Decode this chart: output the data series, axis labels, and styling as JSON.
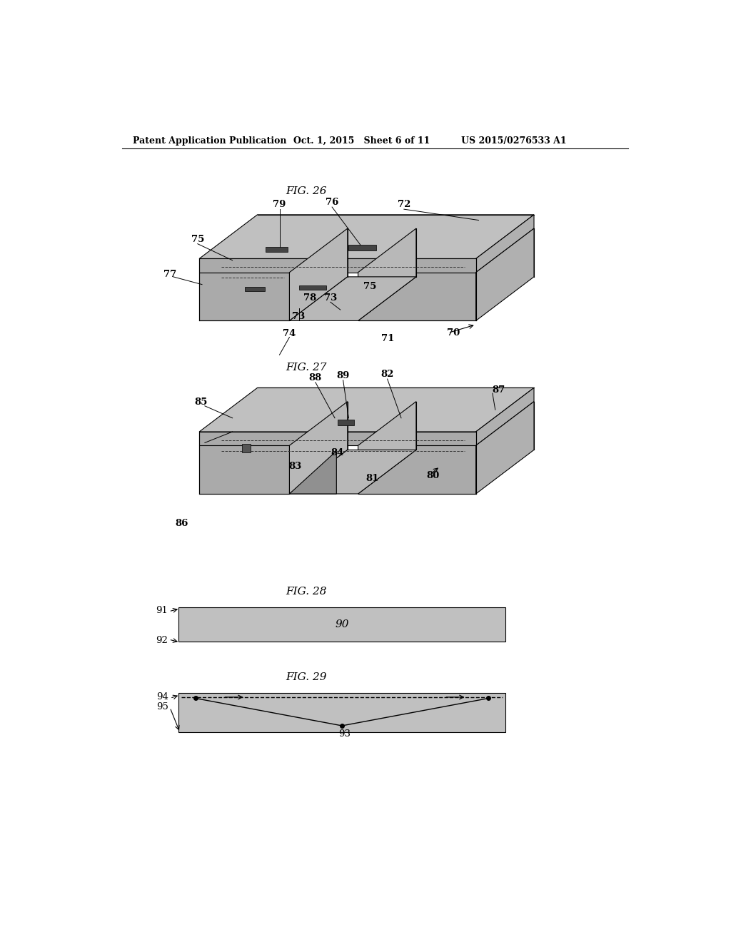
{
  "page_header": {
    "left": "Patent Application Publication",
    "center": "Oct. 1, 2015   Sheet 6 of 11",
    "right": "US 2015/0276533 A1"
  },
  "background_color": "#ffffff",
  "fig26_title": "FIG. 26",
  "fig27_title": "FIG. 27",
  "fig28_title": "FIG. 28",
  "fig29_title": "FIG. 29",
  "fill_color_top": "#c8c8c8",
  "fill_color_side": "#b0b0b0",
  "fill_color_front": "#a0a0a0",
  "fill_color_notch": "#989898"
}
